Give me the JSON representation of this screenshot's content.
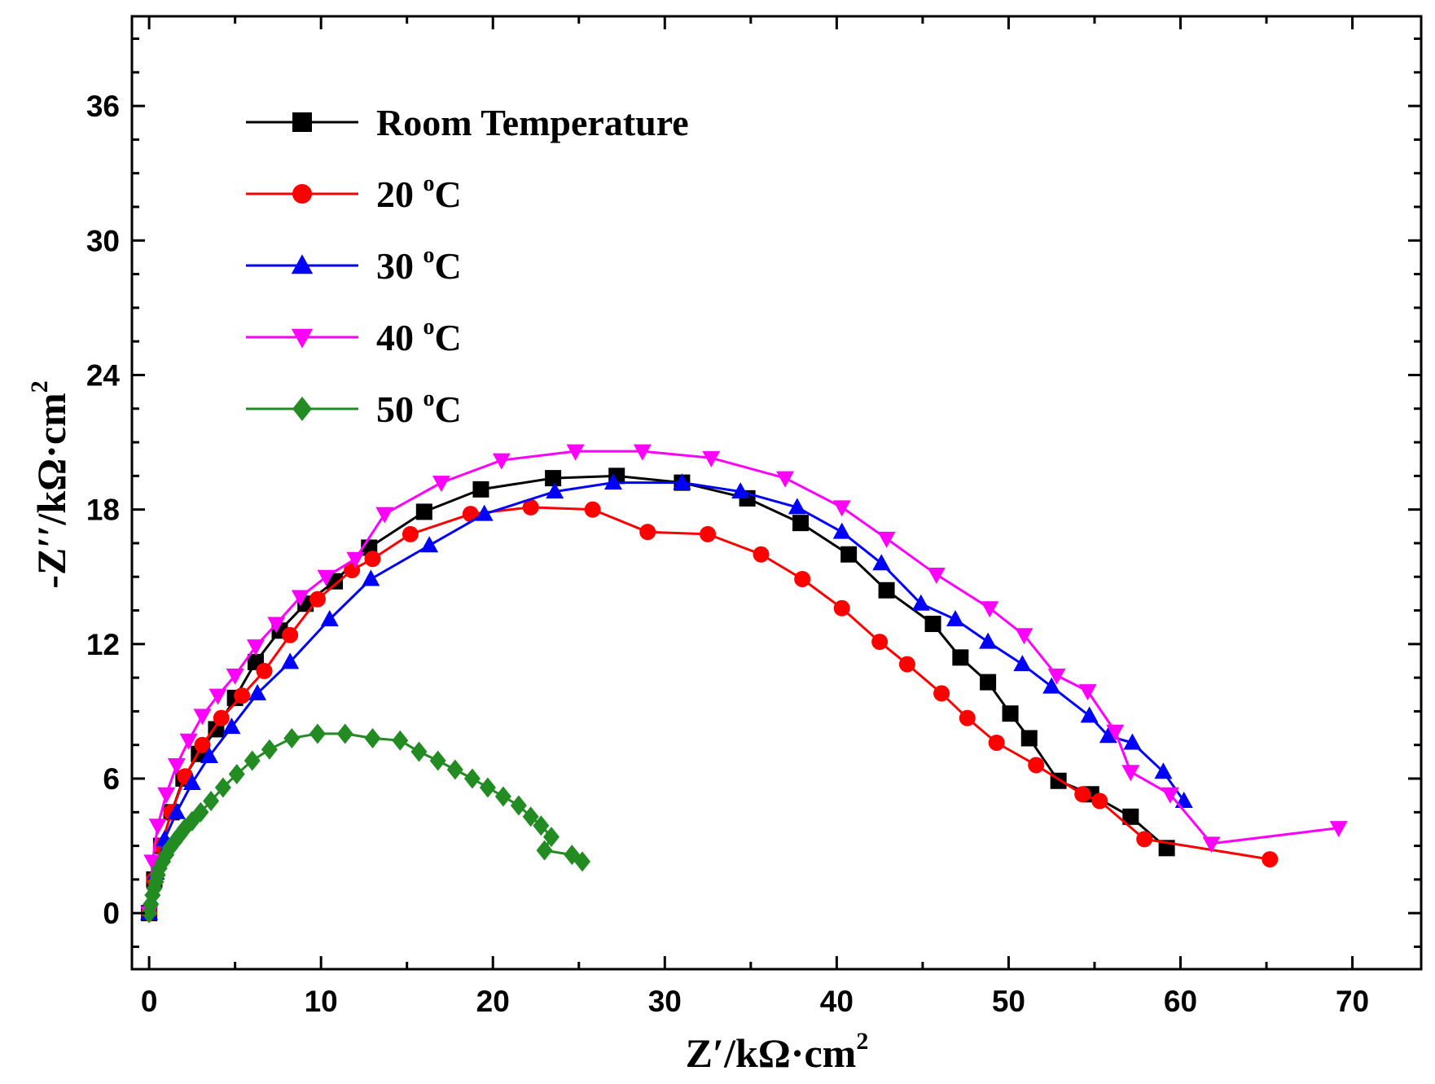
{
  "chart_data": {
    "type": "line",
    "title": "",
    "xlabel": "Z′/kΩ·cm",
    "xlabel_sup": "2",
    "ylabel": "-Z′′/kΩ·cm",
    "ylabel_sup": "2",
    "xlim": [
      -1,
      74
    ],
    "ylim": [
      -2.5,
      40
    ],
    "xticks": [
      0,
      10,
      20,
      30,
      40,
      50,
      60,
      70
    ],
    "xtick_labels": [
      "0",
      "10",
      "20",
      "30",
      "40",
      "50",
      "60",
      "70"
    ],
    "yticks": [
      0,
      6,
      12,
      18,
      24,
      30,
      36
    ],
    "ytick_labels": [
      "0",
      "6",
      "12",
      "18",
      "24",
      "30",
      "36"
    ],
    "grid": false,
    "legend_position": "top-left",
    "series": [
      {
        "name": "Room Temperature",
        "label_main": "Room Temperature",
        "label_sup": "",
        "label_tail": "",
        "color": "#000000",
        "marker": "square",
        "x": [
          0,
          0.3,
          0.7,
          1.3,
          2.0,
          2.9,
          3.9,
          5.0,
          6.2,
          7.6,
          9.1,
          10.8,
          12.8,
          16.0,
          19.3,
          23.5,
          27.2,
          31.0,
          34.8,
          37.9,
          40.7,
          42.9,
          45.6,
          47.2,
          48.8,
          50.1,
          51.2,
          52.9,
          54.8,
          57.1,
          59.2
        ],
        "y": [
          0,
          1.5,
          3.0,
          4.5,
          6.0,
          7.1,
          8.2,
          9.6,
          11.2,
          12.6,
          13.8,
          14.8,
          16.3,
          17.9,
          18.9,
          19.4,
          19.5,
          19.2,
          18.5,
          17.4,
          16.0,
          14.4,
          12.9,
          11.4,
          10.3,
          8.9,
          7.8,
          5.9,
          5.3,
          4.3,
          2.9
        ]
      },
      {
        "name": "20 °C",
        "label_main": "20 ",
        "label_sup": "o",
        "label_tail": "C",
        "color": "#ff0000",
        "marker": "circle",
        "x": [
          0,
          0.3,
          0.7,
          1.3,
          2.1,
          3.1,
          4.2,
          5.4,
          6.7,
          8.2,
          9.8,
          11.8,
          13.0,
          15.2,
          18.7,
          22.2,
          25.8,
          29.0,
          32.5,
          35.6,
          38.0,
          40.3,
          42.5,
          44.1,
          46.1,
          47.6,
          49.3,
          51.6,
          54.3,
          55.3,
          57.9,
          65.2
        ],
        "y": [
          0,
          1.5,
          3.0,
          4.5,
          6.1,
          7.5,
          8.7,
          9.7,
          10.8,
          12.4,
          14.0,
          15.3,
          15.8,
          16.9,
          17.8,
          18.1,
          18.0,
          17.0,
          16.9,
          16.0,
          14.9,
          13.6,
          12.1,
          11.1,
          9.8,
          8.7,
          7.6,
          6.6,
          5.3,
          5.0,
          3.3,
          2.4
        ]
      },
      {
        "name": "30 °C",
        "label_main": "30 ",
        "label_sup": "o",
        "label_tail": "C",
        "color": "#0000ff",
        "marker": "triangle-up",
        "x": [
          0,
          0.4,
          0.9,
          1.6,
          2.5,
          3.5,
          4.8,
          6.3,
          8.2,
          10.5,
          12.9,
          16.3,
          19.5,
          23.6,
          27.0,
          31.0,
          34.4,
          37.7,
          40.3,
          42.6,
          44.9,
          46.9,
          48.8,
          50.8,
          52.5,
          54.7,
          55.8,
          57.2,
          59.0,
          60.2
        ],
        "y": [
          0,
          1.8,
          3.3,
          4.5,
          5.8,
          7.0,
          8.3,
          9.8,
          11.2,
          13.1,
          14.9,
          16.4,
          17.8,
          18.8,
          19.2,
          19.2,
          18.8,
          18.1,
          17.0,
          15.6,
          13.8,
          13.1,
          12.1,
          11.1,
          10.1,
          8.8,
          7.9,
          7.6,
          6.3,
          5.0
        ]
      },
      {
        "name": "40 °C",
        "label_main": "40 ",
        "label_sup": "o",
        "label_tail": "C",
        "color": "#ff00ff",
        "marker": "triangle-down",
        "x": [
          0,
          0.2,
          0.5,
          1.0,
          1.6,
          2.3,
          3.1,
          4.0,
          5.0,
          6.2,
          7.4,
          8.8,
          10.3,
          12.0,
          13.7,
          17.0,
          20.5,
          24.8,
          28.7,
          32.7,
          37.0,
          40.3,
          42.9,
          45.8,
          48.9,
          50.9,
          52.8,
          54.6,
          56.2,
          57.1,
          59.4,
          61.8,
          69.2
        ],
        "y": [
          0,
          2.3,
          3.9,
          5.3,
          6.6,
          7.7,
          8.8,
          9.7,
          10.6,
          11.9,
          12.9,
          14.1,
          15.0,
          15.8,
          17.8,
          19.2,
          20.2,
          20.6,
          20.6,
          20.3,
          19.4,
          18.1,
          16.7,
          15.1,
          13.6,
          12.4,
          10.6,
          9.9,
          8.1,
          6.3,
          5.3,
          3.1,
          3.8
        ]
      },
      {
        "name": "50 °C",
        "label_main": "50 ",
        "label_sup": "o",
        "label_tail": "C",
        "color": "#228b22",
        "marker": "diamond",
        "x": [
          0,
          0.1,
          0.2,
          0.3,
          0.4,
          0.5,
          0.6,
          0.8,
          1.0,
          1.2,
          1.5,
          1.8,
          2.1,
          2.5,
          3.0,
          3.6,
          4.3,
          5.1,
          6.0,
          7.0,
          8.3,
          9.8,
          11.4,
          13.0,
          14.6,
          15.7,
          16.8,
          17.8,
          18.8,
          19.7,
          20.6,
          21.5,
          22.2,
          22.8,
          23.4,
          23.0,
          24.6,
          25.2
        ],
        "y": [
          0,
          0.4,
          0.8,
          1.1,
          1.4,
          1.7,
          2.0,
          2.3,
          2.6,
          2.9,
          3.2,
          3.5,
          3.8,
          4.1,
          4.5,
          5.0,
          5.6,
          6.2,
          6.8,
          7.3,
          7.8,
          8.0,
          8.0,
          7.8,
          7.7,
          7.2,
          6.8,
          6.4,
          6.0,
          5.6,
          5.2,
          4.8,
          4.3,
          3.9,
          3.4,
          2.8,
          2.6,
          2.3
        ]
      }
    ]
  }
}
